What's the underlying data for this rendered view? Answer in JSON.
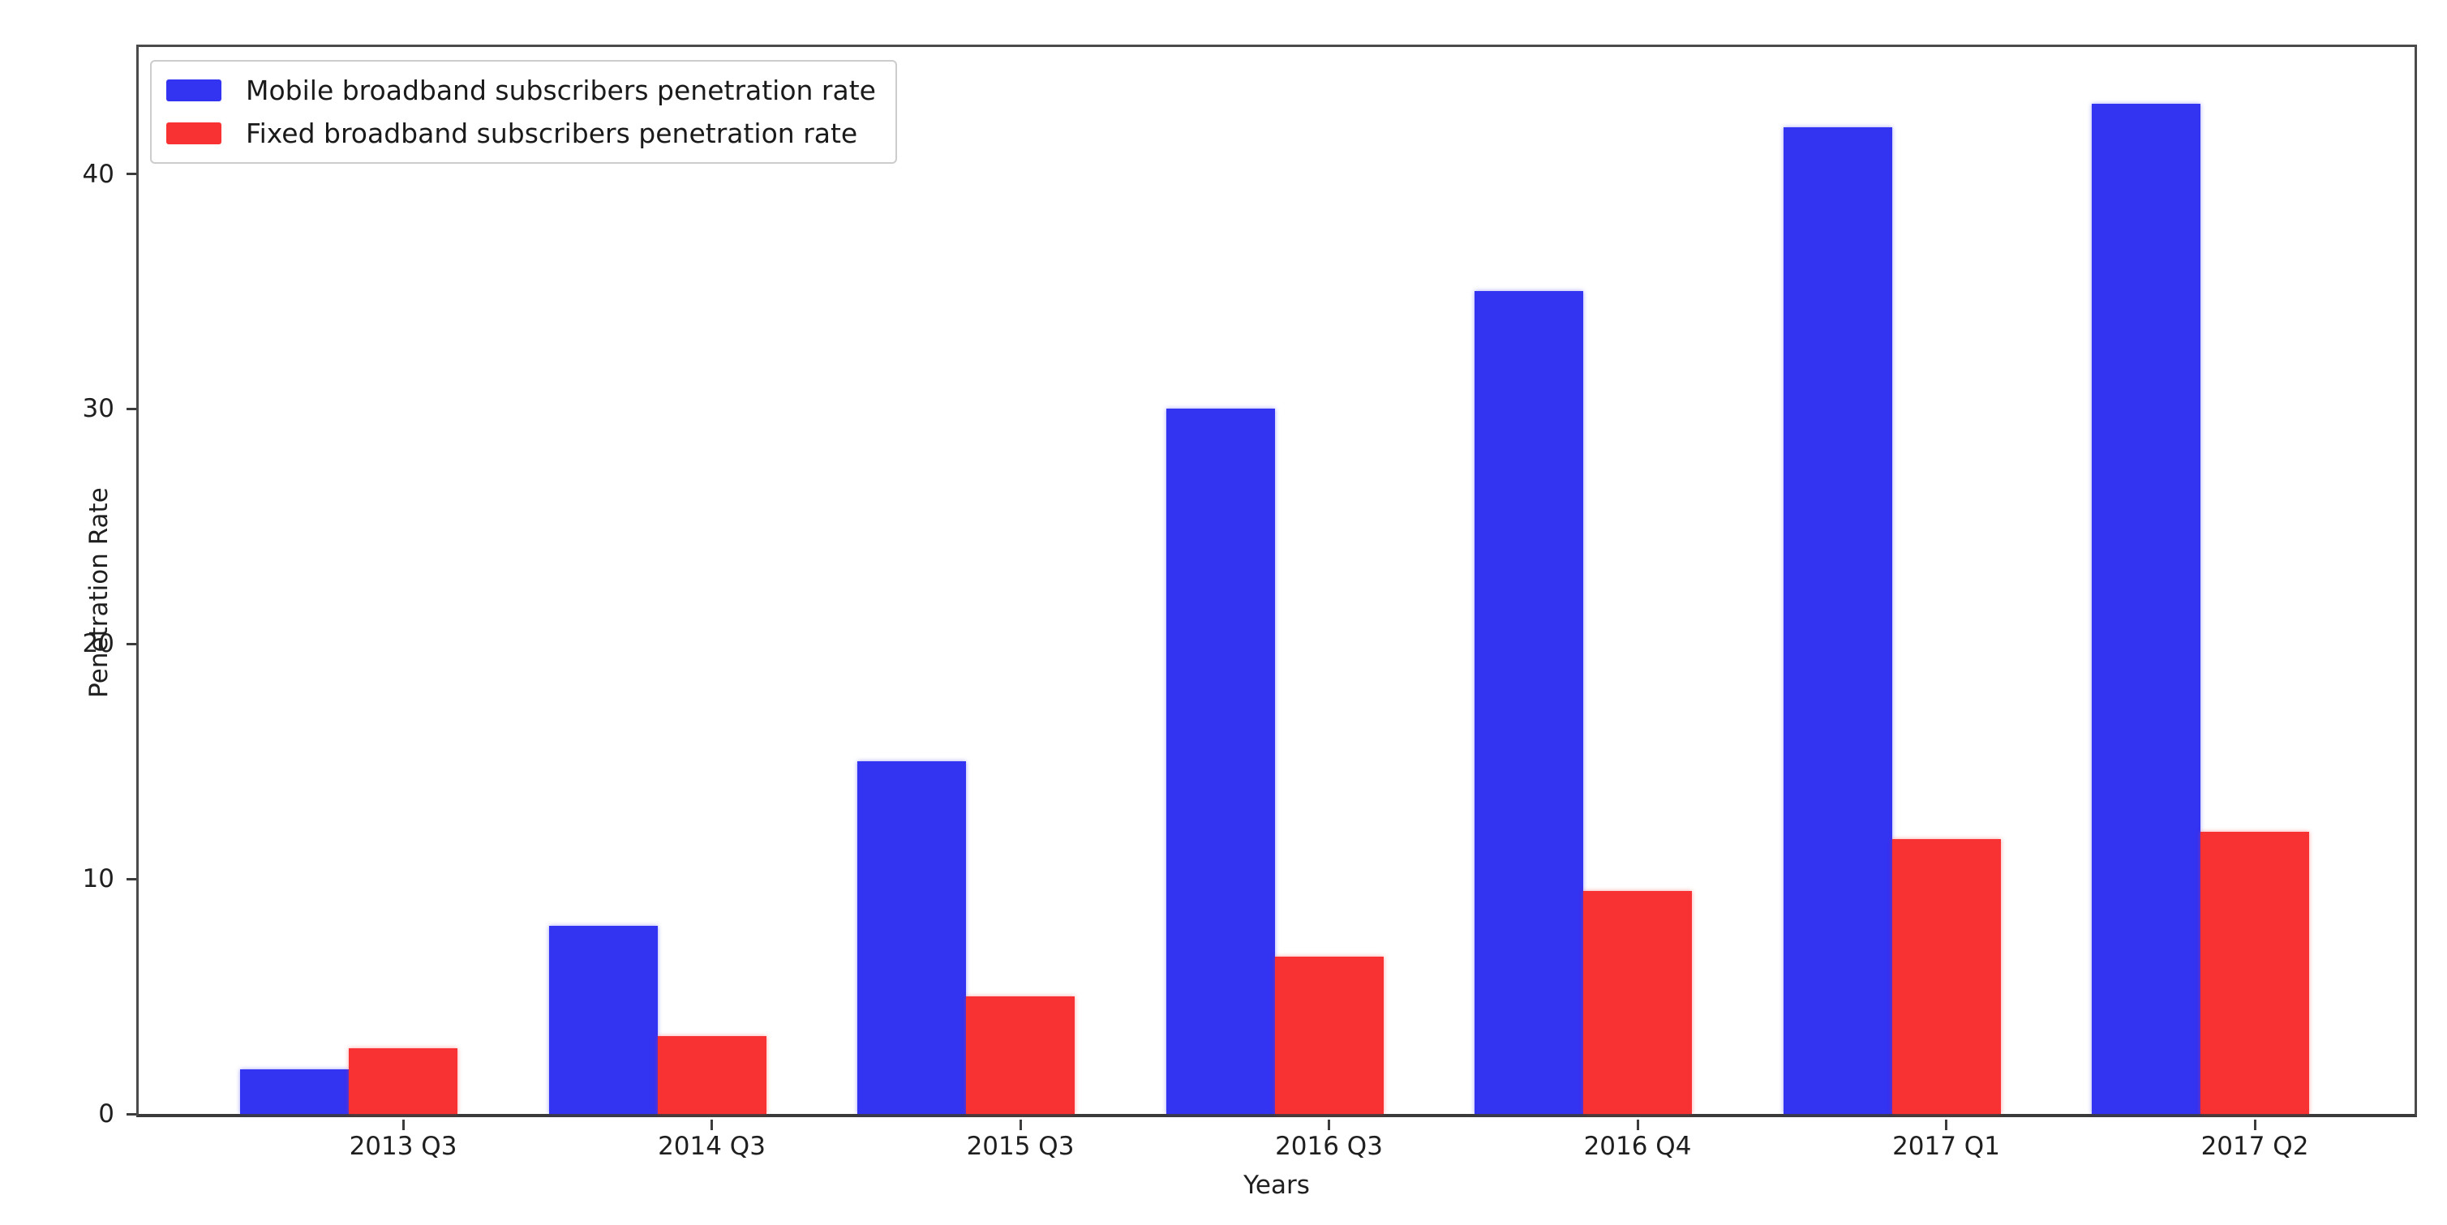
{
  "figure": {
    "xlabel": "Years",
    "ylabel": "Penetration Rate"
  },
  "legend": {
    "items": [
      {
        "label": "Mobile broadband subscribers penetration rate",
        "color": "#3333F2"
      },
      {
        "label": "Fixed broadband subscribers penetration rate",
        "color": "#F83232"
      }
    ]
  },
  "chart_data": {
    "type": "bar",
    "title": "",
    "xlabel": "Years",
    "ylabel": "Penetration Rate",
    "categories": [
      "2013 Q3",
      "2014 Q3",
      "2015 Q3",
      "2016 Q3",
      "2016 Q4",
      "2017 Q1",
      "2017 Q2"
    ],
    "series": [
      {
        "name": "Mobile broadband subscribers penetration rate",
        "color": "#3333F2",
        "values": [
          1.9,
          8,
          15,
          30,
          35,
          42,
          43
        ]
      },
      {
        "name": "Fixed broadband subscribers penetration rate",
        "color": "#F83232",
        "values": [
          2.8,
          3.3,
          5,
          6.7,
          9.5,
          11.7,
          12
        ]
      }
    ],
    "yticks": [
      0,
      10,
      20,
      30,
      40
    ],
    "ylim": [
      0,
      45.4
    ],
    "grid": false,
    "legend_position": "upper left"
  }
}
